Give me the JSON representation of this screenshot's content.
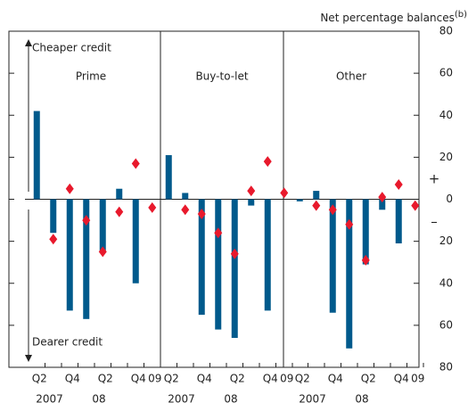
{
  "chart_data": {
    "type": "bar",
    "y_axis_label": "Net percentage balances",
    "y_axis_label_note": "(b)",
    "annotations": {
      "top": "Cheaper credit",
      "bottom": "Dearer credit",
      "plus": "+",
      "minus": "–"
    },
    "categories": [
      "Q2",
      null,
      "Q4",
      null,
      "Q2",
      null,
      "Q4",
      "09"
    ],
    "years": [
      "2007",
      null,
      null,
      "08",
      null,
      null,
      null,
      null
    ],
    "ylim": [
      -80,
      80
    ],
    "yticks": [
      {
        "value": -80,
        "label": "80"
      },
      {
        "value": -60,
        "label": "60"
      },
      {
        "value": -40,
        "label": "40"
      },
      {
        "value": -20,
        "label": "20"
      },
      0,
      20,
      40,
      60,
      80
    ],
    "panels": [
      {
        "title": "Prime",
        "series": [
          {
            "marker": "bar",
            "color": "#005a8c",
            "values": [
              42,
              -16,
              -53,
              -57,
              -25,
              5,
              -40,
              null
            ]
          },
          {
            "marker": "diamond",
            "color": "#e8192c",
            "values": [
              null,
              -19,
              5,
              -10,
              -25,
              -6,
              17,
              -4
            ]
          }
        ]
      },
      {
        "title": "Buy-to-let",
        "series": [
          {
            "marker": "bar",
            "color": "#005a8c",
            "values": [
              21,
              3,
              -55,
              -62,
              -66,
              -3,
              -53,
              null
            ]
          },
          {
            "marker": "diamond",
            "color": "#e8192c",
            "values": [
              null,
              -5,
              -7,
              -16,
              -26,
              4,
              18,
              3
            ]
          }
        ]
      },
      {
        "title": "Other",
        "series": [
          {
            "marker": "bar",
            "color": "#005a8c",
            "values": [
              -1,
              4,
              -54,
              -71,
              -31,
              -5,
              -21,
              null
            ]
          },
          {
            "marker": "diamond",
            "color": "#e8192c",
            "values": [
              null,
              -3,
              -5,
              -12,
              -29,
              1,
              7,
              -3
            ]
          }
        ]
      }
    ]
  }
}
